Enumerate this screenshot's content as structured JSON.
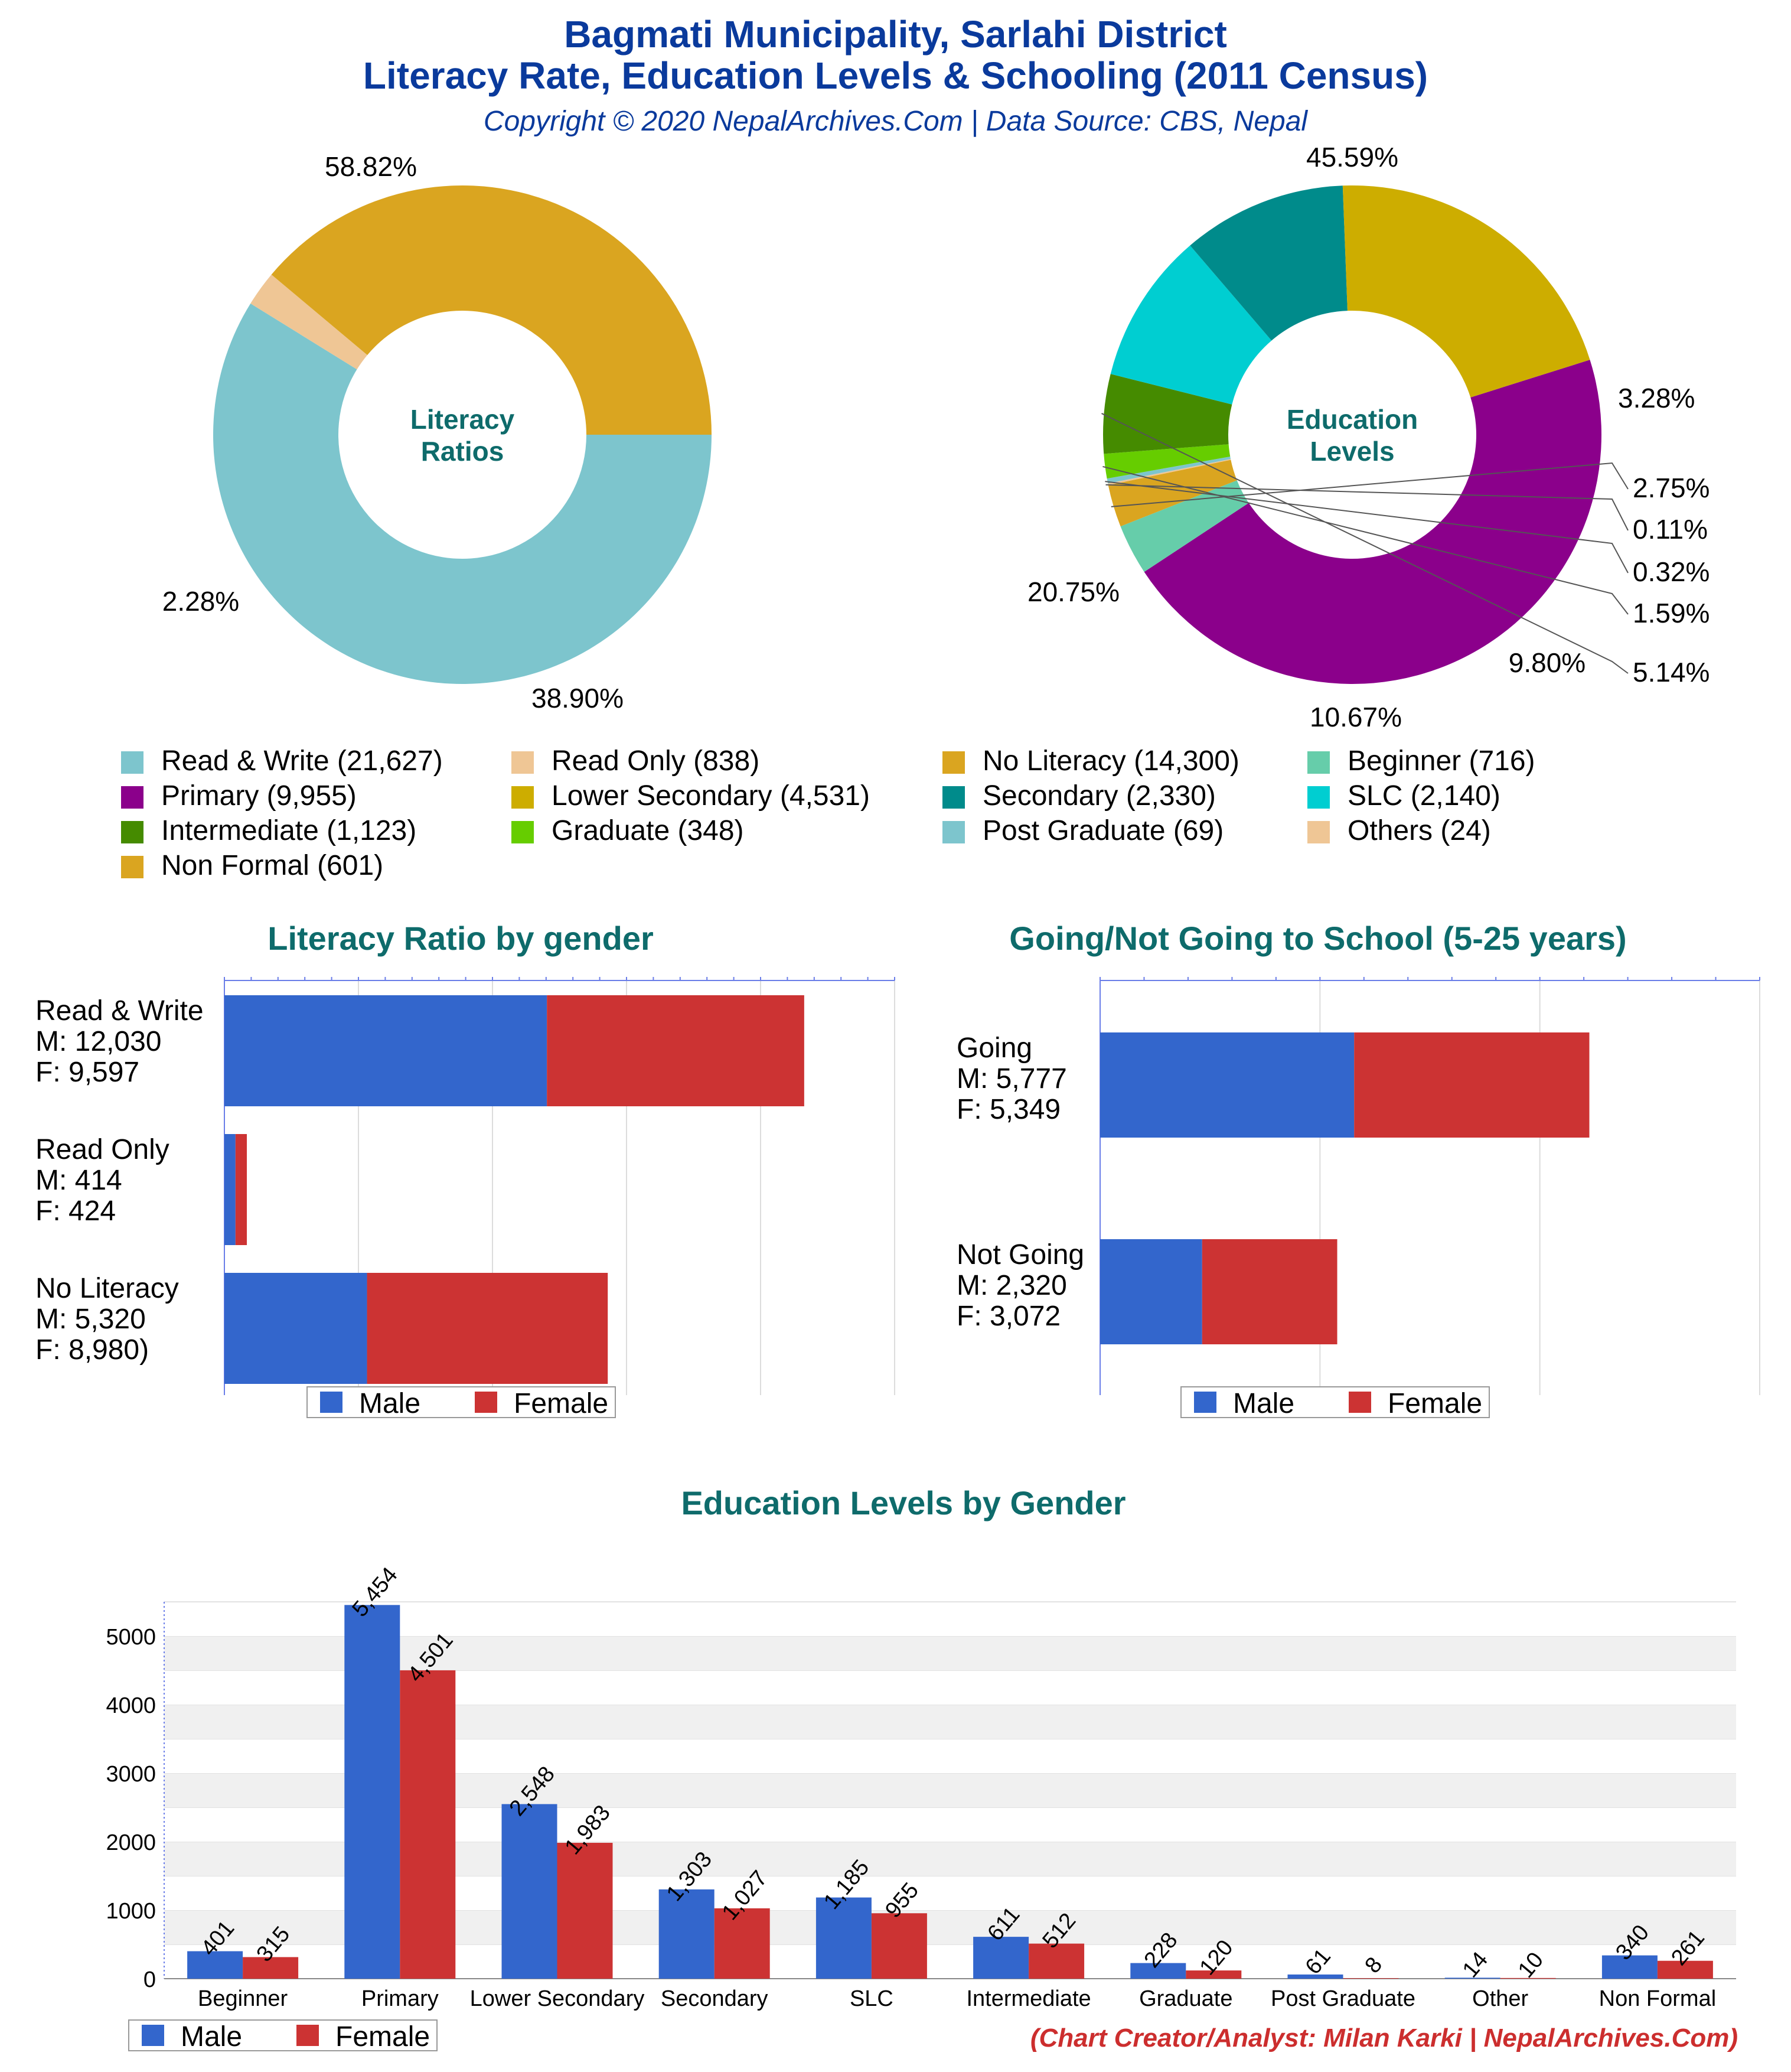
{
  "header": {
    "title_line1": "Bagmati Municipality, Sarlahi District",
    "title_line2": "Literacy Rate, Education Levels & Schooling (2011 Census)",
    "copyright": "Copyright © 2020 NepalArchives.Com | Data Source: CBS, Nepal"
  },
  "footer": {
    "credit": "(Chart Creator/Analyst: Milan Karki | NepalArchives.Com)"
  },
  "colors": {
    "title": "#0a3a9c",
    "chart_title": "#0e6b6b",
    "male": "#3366cc",
    "female": "#cc3333",
    "credit": "#cc2e2e"
  },
  "chart_data": [
    {
      "type": "pie",
      "donut": true,
      "center_label": [
        "Literacy",
        "Ratios"
      ],
      "slices": [
        {
          "label": "Read & Write",
          "value": 21627,
          "percent_label": "58.82%",
          "color": "#7dc5cd"
        },
        {
          "label": "Read Only",
          "value": 838,
          "percent_label": "2.28%",
          "color": "#efc695"
        },
        {
          "label": "No Literacy",
          "value": 14300,
          "percent_label": "38.90%",
          "color": "#daa520"
        }
      ]
    },
    {
      "type": "pie",
      "donut": true,
      "center_label": [
        "Education",
        "Levels"
      ],
      "slices": [
        {
          "label": "Primary",
          "value": 9955,
          "percent_label": "45.59%",
          "color": "#8b008b"
        },
        {
          "label": "Beginner",
          "value": 716,
          "percent_label": "3.28%",
          "color": "#66cdaa"
        },
        {
          "label": "Non Formal",
          "value": 601,
          "percent_label": "2.75%",
          "color": "#daa520"
        },
        {
          "label": "Others",
          "value": 24,
          "percent_label": "0.11%",
          "color": "#efc695"
        },
        {
          "label": "Post Graduate",
          "value": 69,
          "percent_label": "0.32%",
          "color": "#7dc5cd"
        },
        {
          "label": "Graduate",
          "value": 348,
          "percent_label": "1.59%",
          "color": "#66cd00"
        },
        {
          "label": "Intermediate",
          "value": 1123,
          "percent_label": "5.14%",
          "color": "#458b00"
        },
        {
          "label": "SLC",
          "value": 2140,
          "percent_label": "9.80%",
          "color": "#00ced1"
        },
        {
          "label": "Secondary",
          "value": 2330,
          "percent_label": "10.67%",
          "color": "#008b8b"
        },
        {
          "label": "Lower Secondary",
          "value": 4531,
          "percent_label": "20.75%",
          "color": "#cdad00"
        }
      ]
    },
    {
      "type": "legend",
      "items": [
        {
          "label": "Read & Write (21,627)",
          "color": "#7dc5cd"
        },
        {
          "label": "Read Only (838)",
          "color": "#efc695"
        },
        {
          "label": "No Literacy (14,300)",
          "color": "#daa520"
        },
        {
          "label": "Beginner (716)",
          "color": "#66cdaa"
        },
        {
          "label": "Primary (9,955)",
          "color": "#8b008b"
        },
        {
          "label": "Lower Secondary (4,531)",
          "color": "#cdad00"
        },
        {
          "label": "Secondary (2,330)",
          "color": "#008b8b"
        },
        {
          "label": "SLC (2,140)",
          "color": "#00ced1"
        },
        {
          "label": "Intermediate (1,123)",
          "color": "#458b00"
        },
        {
          "label": "Graduate (348)",
          "color": "#66cd00"
        },
        {
          "label": "Post Graduate (69)",
          "color": "#7dc5cd"
        },
        {
          "label": "Others (24)",
          "color": "#efc695"
        },
        {
          "label": "Non Formal (601)",
          "color": "#daa520"
        }
      ]
    },
    {
      "type": "bar",
      "orientation": "horizontal",
      "stacked": true,
      "title": "Literacy Ratio by gender",
      "categories": [
        [
          "Read & Write",
          "M: 12,030",
          "F: 9,597"
        ],
        [
          "Read Only",
          "M: 414",
          "F: 424"
        ],
        [
          "No Literacy",
          "M: 5,320",
          "F: 8,980)"
        ]
      ],
      "series": [
        {
          "name": "Male",
          "values": [
            12030,
            414,
            5320
          ]
        },
        {
          "name": "Female",
          "values": [
            9597,
            424,
            8980
          ]
        }
      ],
      "xlim": [
        0,
        25000
      ],
      "grid": true,
      "legend": "bottom"
    },
    {
      "type": "bar",
      "orientation": "horizontal",
      "stacked": true,
      "title": "Going/Not Going to School (5-25 years)",
      "categories": [
        [
          "Going",
          "M: 5,777",
          "F: 5,349"
        ],
        [
          "Not Going",
          "M: 2,320",
          "F: 3,072"
        ]
      ],
      "series": [
        {
          "name": "Male",
          "values": [
            5777,
            2320
          ]
        },
        {
          "name": "Female",
          "values": [
            5349,
            3072
          ]
        }
      ],
      "xlim": [
        0,
        15000
      ],
      "grid": true,
      "legend": "bottom"
    },
    {
      "type": "bar",
      "orientation": "vertical",
      "title": "Education Levels by Gender",
      "categories": [
        "Beginner",
        "Primary",
        "Lower Secondary",
        "Secondary",
        "SLC",
        "Intermediate",
        "Graduate",
        "Post Graduate",
        "Other",
        "Non Formal"
      ],
      "series": [
        {
          "name": "Male",
          "values": [
            401,
            5454,
            2548,
            1303,
            1185,
            611,
            228,
            61,
            14,
            340
          ],
          "labels": [
            "401",
            "5,454",
            "2,548",
            "1,303",
            "1,185",
            "611",
            "228",
            "61",
            "14",
            "340"
          ]
        },
        {
          "name": "Female",
          "values": [
            315,
            4501,
            1983,
            1027,
            955,
            512,
            120,
            8,
            10,
            261
          ],
          "labels": [
            "315",
            "4,501",
            "1,983",
            "1,027",
            "955",
            "512",
            "120",
            "8",
            "10",
            "261"
          ]
        }
      ],
      "yticks": [
        "0",
        "1000",
        "2000",
        "3000",
        "4000",
        "5000"
      ],
      "ylim": [
        0,
        5500
      ],
      "grid": true,
      "legend": "bottom-left"
    }
  ]
}
